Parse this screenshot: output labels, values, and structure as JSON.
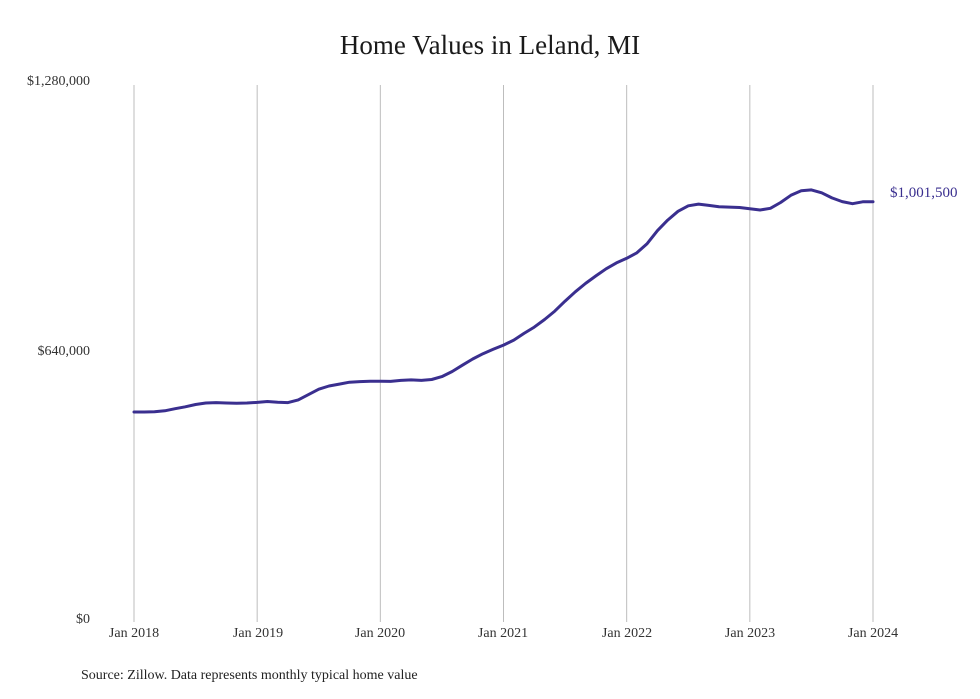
{
  "chart_data": {
    "type": "line",
    "title": "Home Values in Leland, MI",
    "xlabel": "",
    "ylabel": "",
    "ylim": [
      0,
      1280000
    ],
    "yticks": [
      "$0",
      "$640,000",
      "$1,280,000"
    ],
    "xticks": [
      "Jan 2018",
      "Jan 2019",
      "Jan 2020",
      "Jan 2021",
      "Jan 2022",
      "Jan 2023",
      "Jan 2024"
    ],
    "grid": "vertical",
    "line_color": "#3a2f8f",
    "end_label": "$1,001,500",
    "series": [
      {
        "name": "Typical home value",
        "x_start": "Jan 2018",
        "frequency": "monthly",
        "values": [
          500600,
          500600,
          501000,
          503500,
          508500,
          513000,
          518500,
          522000,
          523000,
          522000,
          521500,
          522000,
          523500,
          525500,
          524000,
          523000,
          529500,
          542000,
          555000,
          562500,
          567000,
          571500,
          573000,
          574000,
          574000,
          573500,
          576000,
          577000,
          576000,
          578000,
          585000,
          597000,
          612000,
          627000,
          639500,
          650000,
          660000,
          672000,
          688000,
          703000,
          721000,
          741000,
          765000,
          787000,
          807000,
          825000,
          842000,
          856000,
          867000,
          880000,
          902000,
          933000,
          958000,
          979000,
          992000,
          996000,
          993000,
          990000,
          989000,
          988000,
          985000,
          982000,
          986000,
          1000000,
          1017000,
          1028000,
          1030000,
          1023000,
          1011000,
          1002000,
          997000,
          1001500,
          1001500
        ]
      }
    ]
  },
  "title": "Home Values in Leland, MI",
  "y_axis": {
    "top": "$1,280,000",
    "mid": "$640,000",
    "bottom": "$0"
  },
  "x_axis": [
    "Jan 2018",
    "Jan 2019",
    "Jan 2020",
    "Jan 2021",
    "Jan 2022",
    "Jan 2023",
    "Jan 2024"
  ],
  "end_label": "$1,001,500",
  "source": "Source: Zillow. Data represents monthly typical home value"
}
